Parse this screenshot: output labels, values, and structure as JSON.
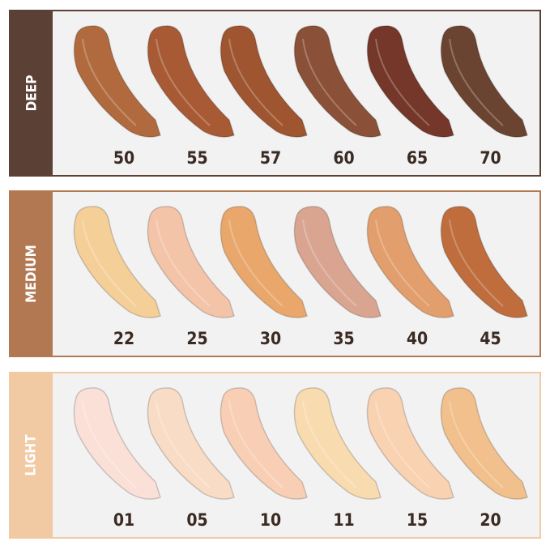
{
  "groups": [
    {
      "label": "DEEP",
      "color": "#5a4035",
      "shades": [
        {
          "name": "50",
          "color": "#b06a3e"
        },
        {
          "name": "55",
          "color": "#a85a35"
        },
        {
          "name": "57",
          "color": "#9e5530"
        },
        {
          "name": "60",
          "color": "#8a5038"
        },
        {
          "name": "65",
          "color": "#74372a"
        },
        {
          "name": "70",
          "color": "#6a4430"
        }
      ]
    },
    {
      "label": "MEDIUM",
      "color": "#b27852",
      "shades": [
        {
          "name": "22",
          "color": "#f5cf98"
        },
        {
          "name": "25",
          "color": "#f3c4a8"
        },
        {
          "name": "30",
          "color": "#e9a76c"
        },
        {
          "name": "35",
          "color": "#d9a590"
        },
        {
          "name": "40",
          "color": "#e29e6c"
        },
        {
          "name": "45",
          "color": "#bf6d3c"
        }
      ]
    },
    {
      "label": "LIGHT",
      "color": "#f1c9a3",
      "shades": [
        {
          "name": "01",
          "color": "#fbe0d8"
        },
        {
          "name": "05",
          "color": "#f9dcc5"
        },
        {
          "name": "10",
          "color": "#f8cfb5"
        },
        {
          "name": "11",
          "color": "#f9dbb0"
        },
        {
          "name": "15",
          "color": "#f9d2b2"
        },
        {
          "name": "20",
          "color": "#f1c08c"
        }
      ]
    }
  ]
}
